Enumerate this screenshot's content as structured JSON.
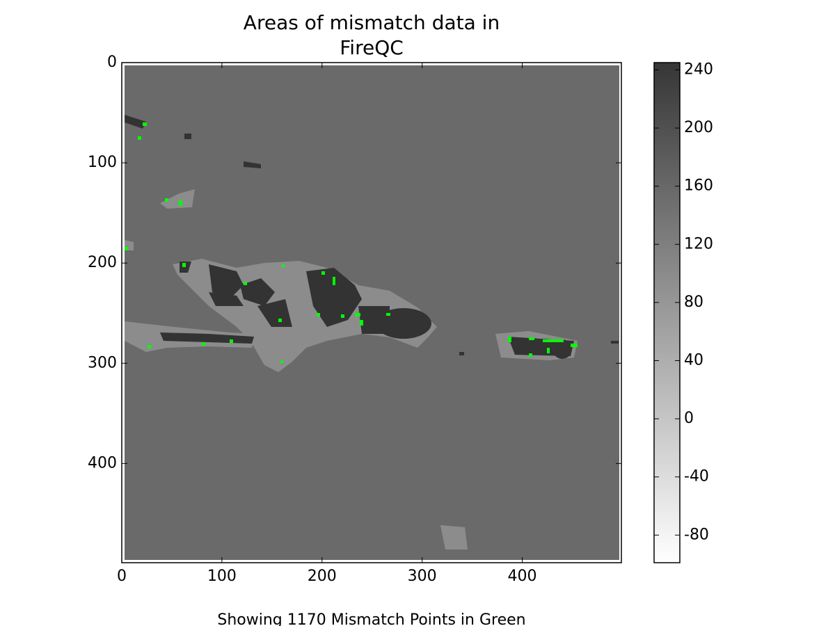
{
  "chart_data": {
    "type": "image",
    "title": [
      "Areas of mismatch data in",
      "FireQC"
    ],
    "x_label": "Showing 1170 Mismatch Points in Green",
    "xlim": [
      0,
      499
    ],
    "ylim": [
      499,
      0
    ],
    "xticks": [
      0,
      100,
      200,
      300,
      400
    ],
    "yticks": [
      0,
      100,
      200,
      300,
      400
    ],
    "colorbar": {
      "clim": [
        -99,
        245
      ],
      "ticks": [
        -80,
        -40,
        0,
        40,
        80,
        120,
        160,
        200,
        240
      ],
      "colors": [
        "#ffffff",
        "#363636"
      ]
    }
  }
}
